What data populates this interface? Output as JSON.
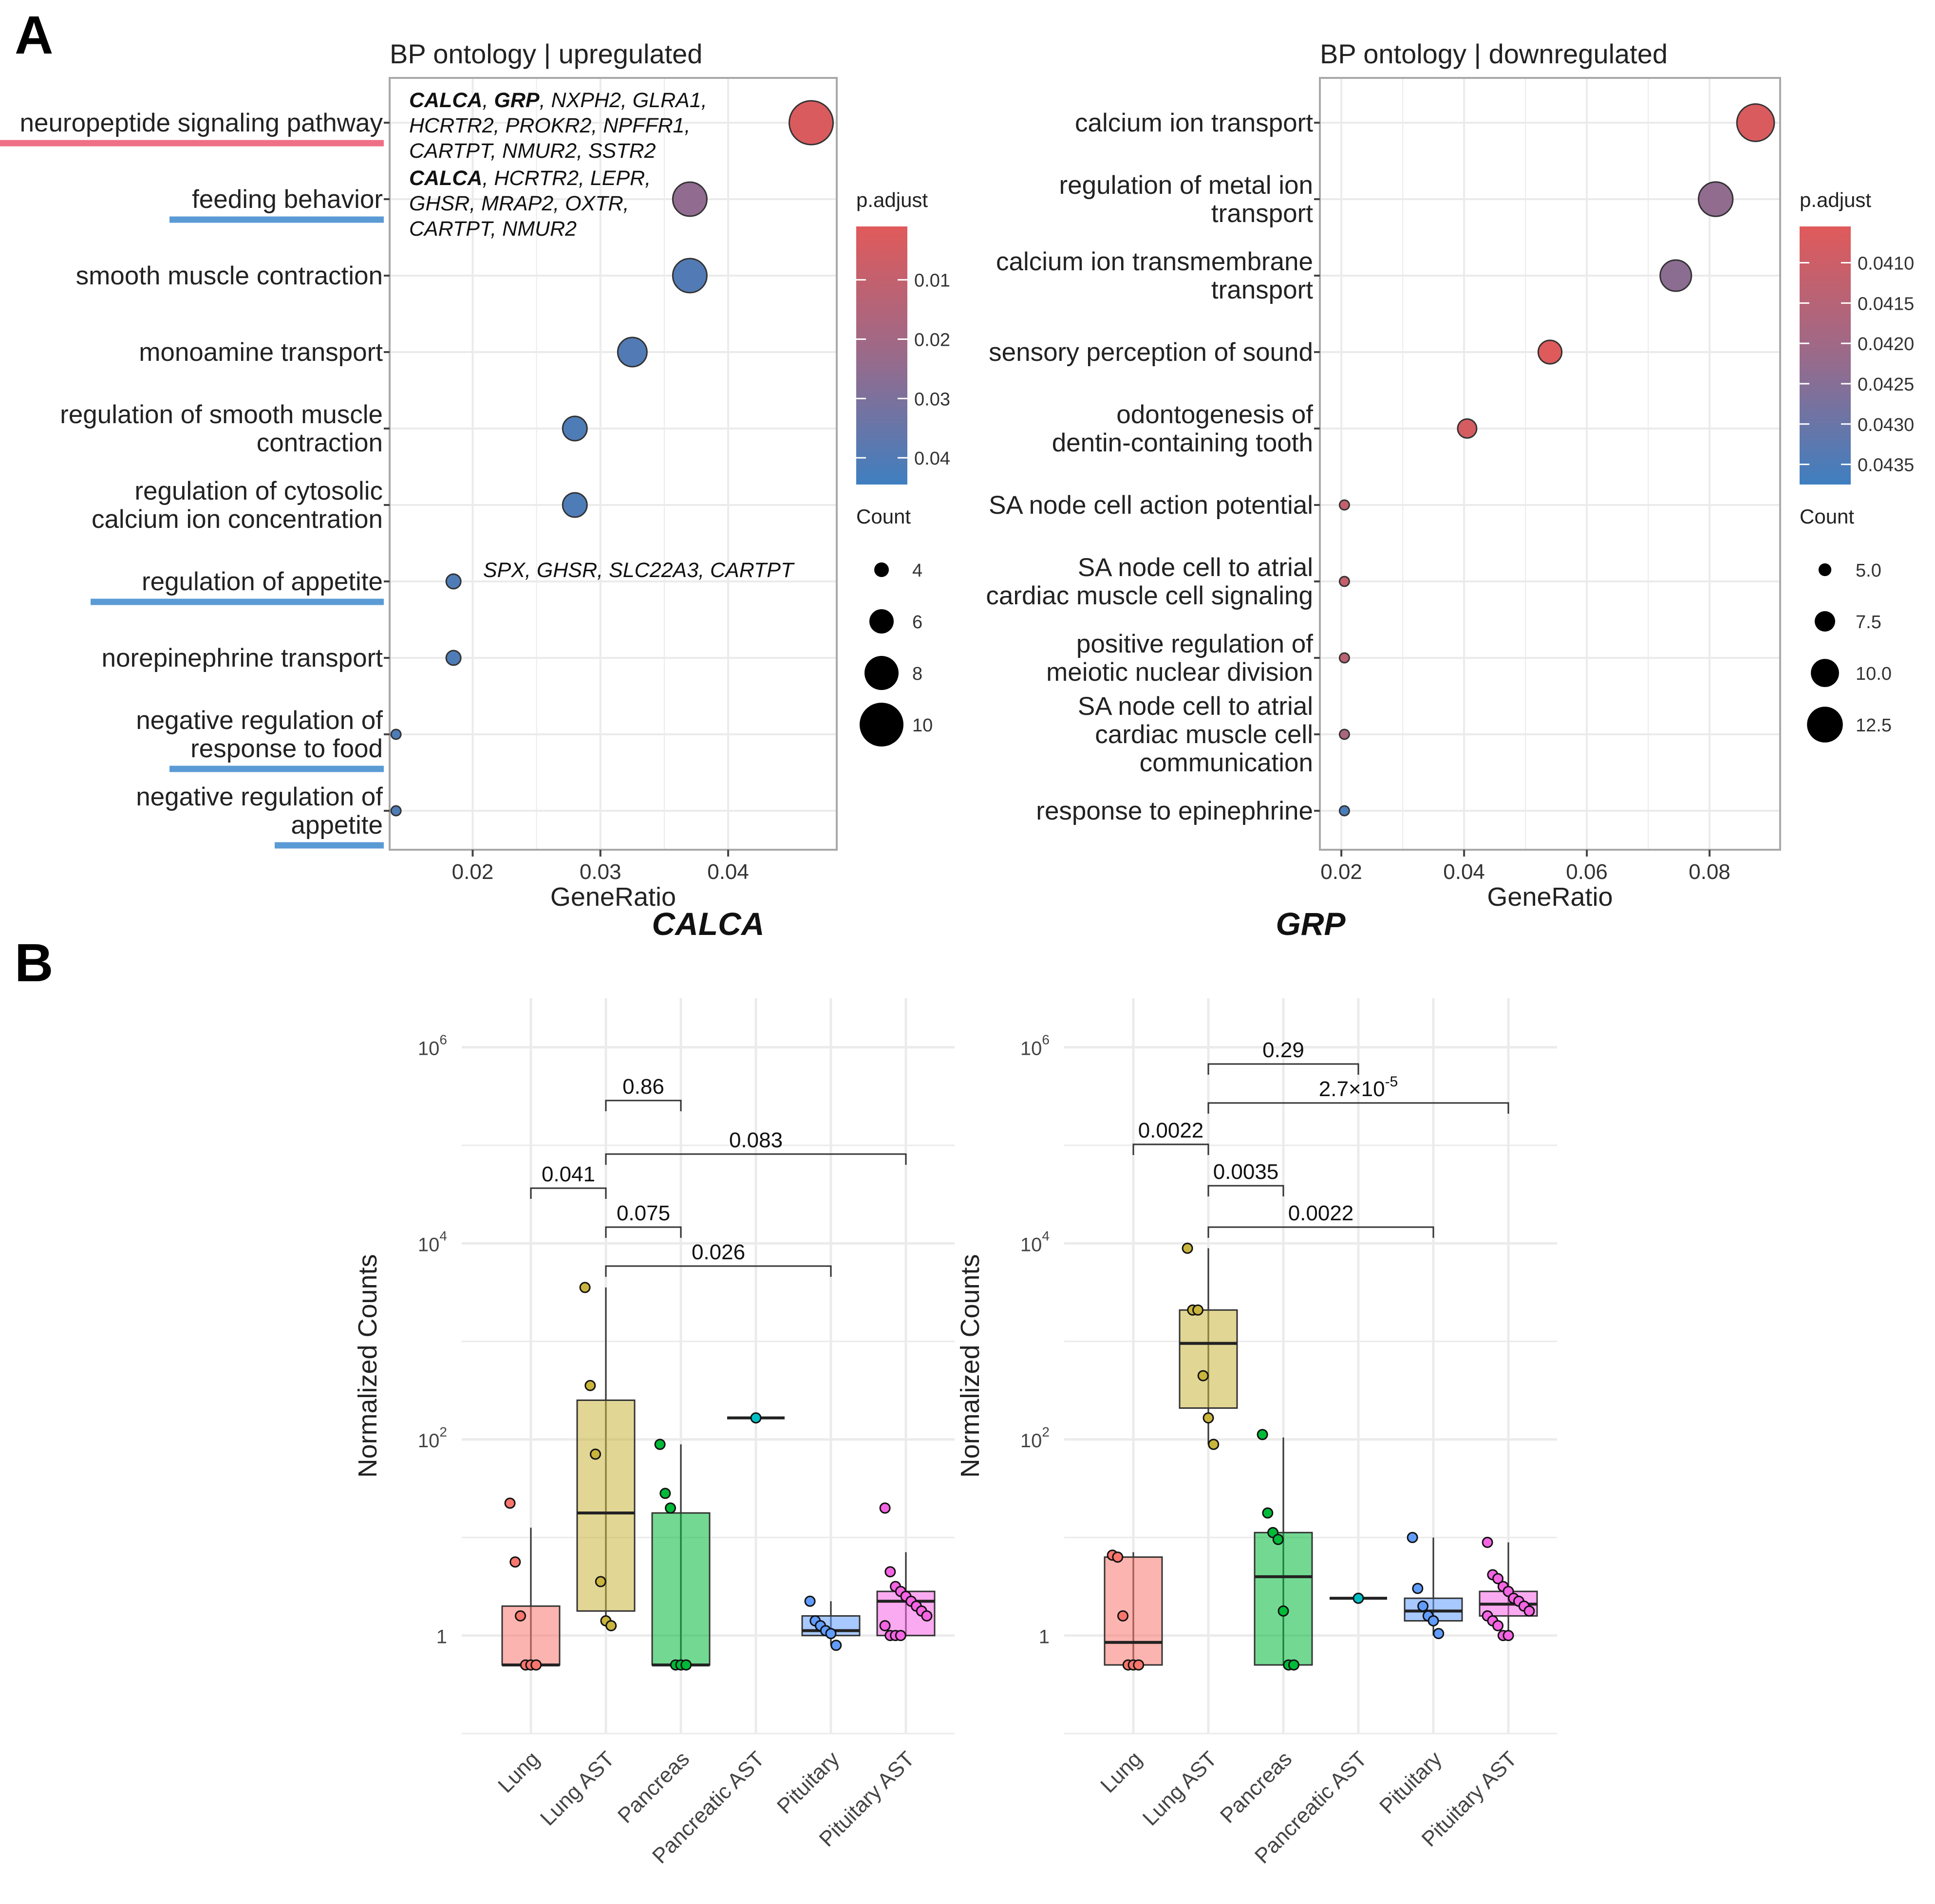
{
  "panel_labels": {
    "a": "A",
    "b": "B"
  },
  "colors": {
    "high": "#e05a5a",
    "mid": "#9a6a8a",
    "low": "#3f7fc0",
    "underline_red": "#ef6f86",
    "underline_blue": "#5b9bd5",
    "grid": "#ebebeb",
    "panel_border": "#a9a9a9",
    "lung": "#f8766d",
    "lung_ast": "#c9b43c",
    "pancreas": "#00ba38",
    "pancreatic_ast": "#00bfc4",
    "pituitary": "#619cff",
    "pituitary_ast": "#f564e3"
  },
  "chart_data": [
    {
      "type": "scatter",
      "title": "BP ontology | upregulated",
      "xlabel": "GeneRatio",
      "xlim": [
        0.0135,
        0.0485
      ],
      "xticks": [
        0.02,
        0.03,
        0.04
      ],
      "xtick_labels": [
        "0.02",
        "0.03",
        "0.04"
      ],
      "terms": [
        {
          "label": [
            "neuropeptide signaling pathway"
          ],
          "x": 0.0465,
          "count": 10,
          "p": 0.003,
          "underline": "red"
        },
        {
          "label": [
            "feeding behavior"
          ],
          "x": 0.037,
          "count": 8,
          "p": 0.025,
          "underline": "blue"
        },
        {
          "label": [
            "smooth muscle contraction"
          ],
          "x": 0.037,
          "count": 8,
          "p": 0.04,
          "underline": null
        },
        {
          "label": [
            "monoamine transport"
          ],
          "x": 0.0325,
          "count": 7,
          "p": 0.04,
          "underline": null
        },
        {
          "label": [
            "regulation of smooth muscle",
            "contraction"
          ],
          "x": 0.028,
          "count": 6,
          "p": 0.041,
          "underline": null
        },
        {
          "label": [
            "regulation of cytosolic",
            "calcium ion concentration"
          ],
          "x": 0.028,
          "count": 6,
          "p": 0.041,
          "underline": null
        },
        {
          "label": [
            "regulation of appetite"
          ],
          "x": 0.0185,
          "count": 4,
          "p": 0.041,
          "underline": "blue"
        },
        {
          "label": [
            "norepinephrine transport"
          ],
          "x": 0.0185,
          "count": 4,
          "p": 0.041,
          "underline": null
        },
        {
          "label": [
            "negative regulation of",
            "response to food"
          ],
          "x": 0.014,
          "count": 3,
          "p": 0.041,
          "underline": "blue"
        },
        {
          "label": [
            "negative regulation of",
            "appetite"
          ],
          "x": 0.014,
          "count": 3,
          "p": 0.041,
          "underline": "blue"
        }
      ],
      "gene_annotations": [
        {
          "lines": [
            [
              {
                "t": "CALCA",
                "b": true
              },
              {
                "t": ", ",
                "b": false
              },
              {
                "t": "GRP",
                "b": true
              },
              {
                "t": ", NXPH2, GLRA1,",
                "b": false
              }
            ],
            [
              {
                "t": "HCRTR2, PROKR2, NPFFR1,",
                "b": false
              }
            ],
            [
              {
                "t": "CARTPT, NMUR2, SSTR2",
                "b": false
              }
            ]
          ]
        },
        {
          "lines": [
            [
              {
                "t": "CALCA",
                "b": true
              },
              {
                "t": ", HCRTR2, LEPR,",
                "b": false
              }
            ],
            [
              {
                "t": "GHSR, MRAP2, OXTR,",
                "b": false
              }
            ],
            [
              {
                "t": "CARTPT, NMUR2",
                "b": false
              }
            ]
          ]
        },
        {
          "lines": [
            [
              {
                "t": "SPX, GHSR, SLC22A3, CARTPT",
                "b": false
              }
            ]
          ]
        }
      ],
      "legend_color": {
        "title": "p.adjust",
        "range": [
          0.001,
          0.0445
        ],
        "ticks": [
          0.01,
          0.02,
          0.03,
          0.04
        ],
        "tick_labels": [
          "0.01",
          "0.02",
          "0.03",
          "0.04"
        ]
      },
      "legend_size": {
        "title": "Count",
        "values": [
          4,
          6,
          8,
          10
        ],
        "labels": [
          "4",
          "6",
          "8",
          "10"
        ]
      }
    },
    {
      "type": "scatter",
      "title": "BP ontology | downregulated",
      "xlabel": "GeneRatio",
      "xlim": [
        0.0165,
        0.0915
      ],
      "xticks": [
        0.02,
        0.04,
        0.06,
        0.08
      ],
      "xtick_labels": [
        "0.02",
        "0.04",
        "0.06",
        "0.08"
      ],
      "terms": [
        {
          "label": [
            "calcium ion transport"
          ],
          "x": 0.0875,
          "count": 13,
          "p": 0.0407
        },
        {
          "label": [
            "regulation of metal ion",
            "transport"
          ],
          "x": 0.081,
          "count": 12,
          "p": 0.0423
        },
        {
          "label": [
            "calcium ion transmembrane",
            "transport"
          ],
          "x": 0.0745,
          "count": 11,
          "p": 0.0424
        },
        {
          "label": [
            "sensory perception of sound"
          ],
          "x": 0.054,
          "count": 8.5,
          "p": 0.0406
        },
        {
          "label": [
            "odontogenesis of",
            "dentin-containing tooth"
          ],
          "x": 0.0405,
          "count": 7,
          "p": 0.0408
        },
        {
          "label": [
            "SA node cell action potential"
          ],
          "x": 0.0205,
          "count": 4,
          "p": 0.0412
        },
        {
          "label": [
            "SA node cell to atrial",
            "cardiac muscle cell signaling"
          ],
          "x": 0.0205,
          "count": 4,
          "p": 0.0412
        },
        {
          "label": [
            "positive regulation of",
            "meiotic nuclear division"
          ],
          "x": 0.0205,
          "count": 4,
          "p": 0.0414
        },
        {
          "label": [
            "SA node cell to atrial",
            "cardiac muscle cell",
            "communication"
          ],
          "x": 0.0205,
          "count": 4,
          "p": 0.0418
        },
        {
          "label": [
            "response to epinephrine"
          ],
          "x": 0.0205,
          "count": 4,
          "p": 0.0436
        }
      ],
      "legend_color": {
        "title": "p.adjust",
        "range": [
          0.04055,
          0.04375
        ],
        "ticks": [
          0.041,
          0.0415,
          0.042,
          0.0425,
          0.043,
          0.0435
        ],
        "tick_labels": [
          "0.0410",
          "0.0415",
          "0.0420",
          "0.0425",
          "0.0430",
          "0.0435"
        ]
      },
      "legend_size": {
        "title": "Count",
        "values": [
          5,
          7.5,
          10,
          12.5
        ],
        "labels": [
          "5.0",
          "7.5",
          "10.0",
          "12.5"
        ]
      }
    },
    {
      "type": "box",
      "title": "CALCA",
      "ylabel": "Normalized Counts",
      "yscale": "log10",
      "ylim_log10": [
        -1.0,
        6.5
      ],
      "yticks_log10": [
        0,
        2,
        4,
        6
      ],
      "ytick_labels": [
        {
          "base": "1",
          "exp": ""
        },
        {
          "base": "10",
          "exp": "2"
        },
        {
          "base": "10",
          "exp": "4"
        },
        {
          "base": "10",
          "exp": "6"
        }
      ],
      "categories": [
        "Lung",
        "Lung AST",
        "Pancreas",
        "Pancreatic AST",
        "Pituitary",
        "Pituitary AST"
      ],
      "box_log10": [
        {
          "q1": -0.3,
          "med": -0.3,
          "q3": 0.3,
          "lo": -0.3,
          "hi": 1.1
        },
        {
          "q1": 0.25,
          "med": 1.25,
          "q3": 2.4,
          "lo": 0.1,
          "hi": 3.55
        },
        {
          "q1": -0.3,
          "med": -0.3,
          "q3": 1.25,
          "lo": -0.3,
          "hi": 1.95
        },
        {
          "q1": 2.22,
          "med": 2.22,
          "q3": 2.22,
          "lo": 2.22,
          "hi": 2.22
        },
        {
          "q1": 0.0,
          "med": 0.05,
          "q3": 0.2,
          "lo": -0.1,
          "hi": 0.35
        },
        {
          "q1": 0.0,
          "med": 0.35,
          "q3": 0.45,
          "lo": 0.0,
          "hi": 0.85
        }
      ],
      "points_log10": [
        [
          1.35,
          0.75,
          0.2,
          -0.3,
          -0.3,
          -0.3
        ],
        [
          3.55,
          2.55,
          1.85,
          0.55,
          0.15,
          0.1
        ],
        [
          1.95,
          1.45,
          1.3,
          -0.3,
          -0.3,
          -0.3
        ],
        [
          2.22
        ],
        [
          0.35,
          0.15,
          0.1,
          0.05,
          0.02,
          -0.1
        ],
        [
          1.3,
          0.65,
          0.5,
          0.45,
          0.4,
          0.35,
          0.3,
          0.25,
          0.2,
          0.1,
          0.0,
          0.0,
          0.0
        ]
      ],
      "comparisons": [
        {
          "from": 1,
          "to": 2,
          "label": "0.86"
        },
        {
          "from": 1,
          "to": 5,
          "label": "0.083"
        },
        {
          "from": 0,
          "to": 1,
          "label": "0.041"
        },
        {
          "from": 1,
          "to": 2,
          "label": "0.075"
        },
        {
          "from": 1,
          "to": 4,
          "label": "0.026"
        }
      ]
    },
    {
      "type": "box",
      "title": "GRP",
      "ylabel": "Normalized Counts",
      "yscale": "log10",
      "ylim_log10": [
        -1.0,
        6.5
      ],
      "yticks_log10": [
        0,
        2,
        4,
        6
      ],
      "ytick_labels": [
        {
          "base": "1",
          "exp": ""
        },
        {
          "base": "10",
          "exp": "2"
        },
        {
          "base": "10",
          "exp": "4"
        },
        {
          "base": "10",
          "exp": "6"
        }
      ],
      "categories": [
        "Lung",
        "Lung AST",
        "Pancreas",
        "Pancreatic AST",
        "Pituitary",
        "Pituitary AST"
      ],
      "box_log10": [
        {
          "q1": -0.3,
          "med": -0.07,
          "q3": 0.8,
          "lo": -0.3,
          "hi": 0.85
        },
        {
          "q1": 2.32,
          "med": 2.98,
          "q3": 3.32,
          "lo": 1.95,
          "hi": 3.95
        },
        {
          "q1": -0.3,
          "med": 0.6,
          "q3": 1.05,
          "lo": -0.3,
          "hi": 2.02
        },
        {
          "q1": 0.38,
          "med": 0.38,
          "q3": 0.38,
          "lo": 0.38,
          "hi": 0.38
        },
        {
          "q1": 0.15,
          "med": 0.25,
          "q3": 0.38,
          "lo": 0.0,
          "hi": 1.0
        },
        {
          "q1": 0.2,
          "med": 0.32,
          "q3": 0.45,
          "lo": 0.0,
          "hi": 0.95
        }
      ],
      "points_log10": [
        [
          0.82,
          0.8,
          0.2,
          -0.3,
          -0.3,
          -0.3
        ],
        [
          3.95,
          3.32,
          3.32,
          2.65,
          2.22,
          1.95
        ],
        [
          2.05,
          1.25,
          1.05,
          0.98,
          0.25,
          -0.3,
          -0.3
        ],
        [
          0.38
        ],
        [
          1.0,
          0.48,
          0.3,
          0.2,
          0.15,
          0.02
        ],
        [
          0.95,
          0.62,
          0.58,
          0.5,
          0.45,
          0.38,
          0.35,
          0.3,
          0.25,
          0.2,
          0.15,
          0.1,
          0.0,
          0.0
        ]
      ],
      "comparisons": [
        {
          "from": 1,
          "to": 3,
          "label": "0.29"
        },
        {
          "from": 1,
          "to": 5,
          "label": "2.7×10",
          "exp": "-5"
        },
        {
          "from": 0,
          "to": 1,
          "label": "0.0022"
        },
        {
          "from": 1,
          "to": 2,
          "label": "0.0035"
        },
        {
          "from": 1,
          "to": 4,
          "label": "0.0022"
        }
      ]
    }
  ]
}
